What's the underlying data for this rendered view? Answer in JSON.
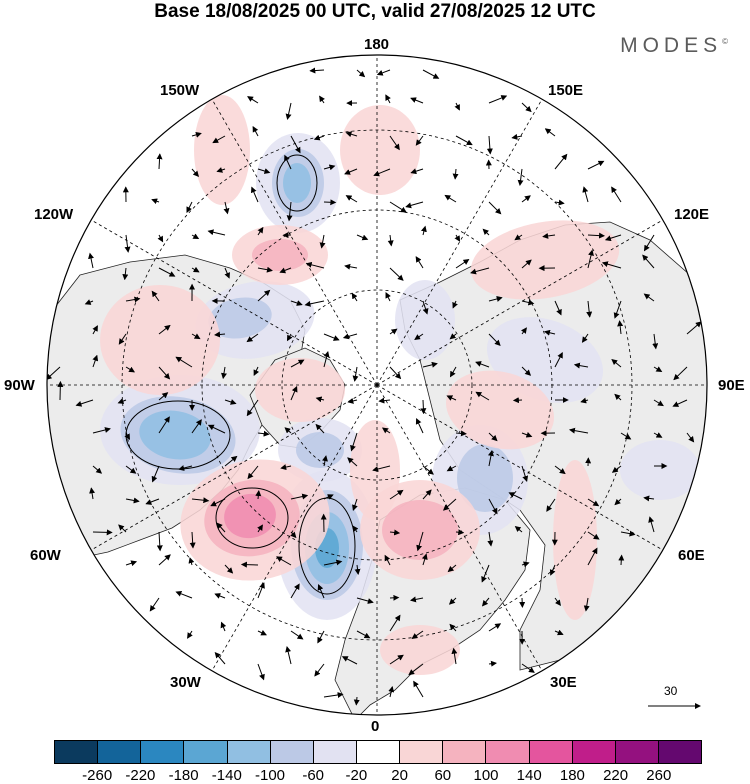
{
  "title": "Base 18/08/2025 00 UTC, valid 27/08/2025 12 UTC",
  "brand": "MODES",
  "brand_mark": "©",
  "longitude_labels": {
    "top": "180",
    "upper_left": "150W",
    "upper_right": "150E",
    "left_high": "120W",
    "right_high": "120E",
    "left": "90W",
    "right": "90E",
    "left_low": "60W",
    "right_low": "60E",
    "lower_left": "30W",
    "lower_right": "30E",
    "bottom": "0"
  },
  "wind_reference_value": "30",
  "colorbar": {
    "colors": [
      "#0b3a5e",
      "#13649a",
      "#2b87c0",
      "#5ba6d3",
      "#91bfe2",
      "#bcc9e6",
      "#e2e2f2",
      "#ffffff",
      "#f9d6d6",
      "#f5b3bf",
      "#f08cb1",
      "#e4559e",
      "#c01e8a",
      "#94117f",
      "#64086f"
    ],
    "ticks": [
      "-260",
      "-220",
      "-180",
      "-140",
      "-100",
      "-60",
      "-20",
      "20",
      "60",
      "100",
      "140",
      "180",
      "220",
      "260"
    ]
  },
  "anomaly_colors": {
    "ocean": "#ffffff",
    "land": "#ececec",
    "neg_weak": "#e2e2f2",
    "neg_mid": "#bcc9e6",
    "neg_strong": "#91bfe2",
    "neg_core": "#5ba6d3",
    "pos_weak": "#f9d6d6",
    "pos_mid": "#f5b3bf",
    "pos_strong": "#f08cb1"
  }
}
